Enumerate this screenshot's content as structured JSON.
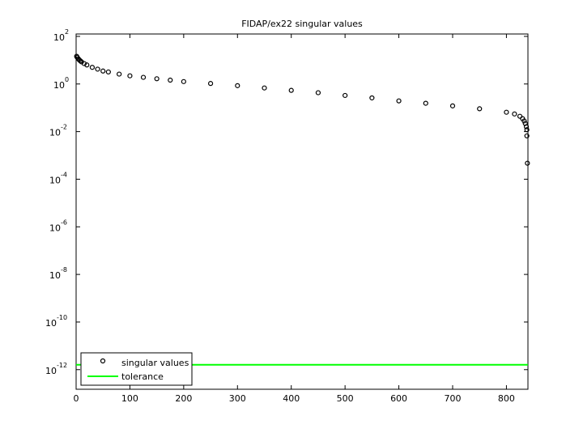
{
  "chart_data": {
    "type": "scatter",
    "title": "FIDAP/ex22 singular values",
    "xlim": [
      0,
      840
    ],
    "xticks": [
      0,
      100,
      200,
      300,
      400,
      500,
      600,
      700,
      800
    ],
    "ylim": [
      1.5e-13,
      126
    ],
    "ylog": true,
    "yticks": [
      {
        "value": 100,
        "label": "10^2"
      },
      {
        "value": 1,
        "label": "10^0"
      },
      {
        "value": 0.01,
        "label": "10^-2"
      },
      {
        "value": 0.0001,
        "label": "10^-4"
      },
      {
        "value": 1e-06,
        "label": "10^-6"
      },
      {
        "value": 1e-08,
        "label": "10^-8"
      },
      {
        "value": 1e-10,
        "label": "10^-10"
      },
      {
        "value": 1e-12,
        "label": "10^-12"
      }
    ],
    "grid": false,
    "legend": "lower left",
    "series": [
      {
        "name": "singular values",
        "color": "#000000",
        "mode": "markers",
        "x": [
          1,
          2,
          4,
          6,
          8,
          10,
          15,
          20,
          30,
          40,
          50,
          60,
          80,
          100,
          125,
          150,
          175,
          200,
          250,
          300,
          350,
          400,
          450,
          500,
          550,
          600,
          650,
          700,
          750,
          800,
          815,
          825,
          830,
          833,
          835,
          837,
          838,
          838,
          839
        ],
        "values": [
          14.5,
          13.2,
          11.5,
          10.2,
          9.3,
          8.5,
          7.2,
          6.3,
          5.0,
          4.2,
          3.5,
          3.2,
          2.6,
          2.2,
          1.9,
          1.66,
          1.45,
          1.26,
          1.05,
          0.85,
          0.68,
          0.54,
          0.43,
          0.33,
          0.26,
          0.195,
          0.155,
          0.12,
          0.091,
          0.065,
          0.055,
          0.044,
          0.035,
          0.028,
          0.022,
          0.016,
          0.012,
          0.0066,
          0.00047
        ]
      },
      {
        "name": "tolerance",
        "color": "#00ff00",
        "mode": "line",
        "x": [
          0,
          840
        ],
        "values": [
          1.6e-12,
          1.6e-12
        ]
      }
    ]
  }
}
